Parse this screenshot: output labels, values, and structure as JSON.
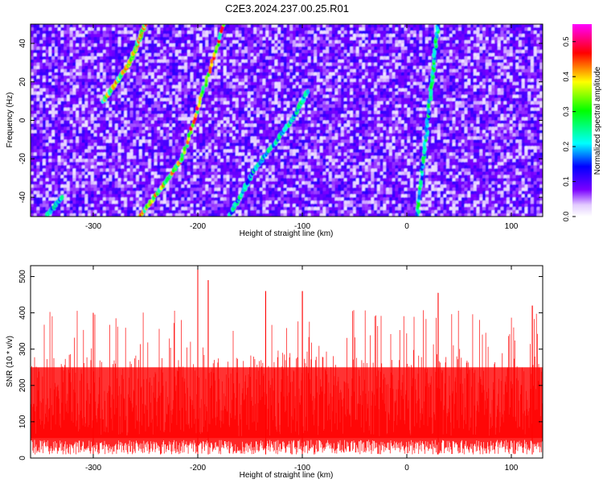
{
  "title": "C2E3.2024.237.00.25.R01",
  "chart_data": [
    {
      "type": "heatmap",
      "title": "C2E3.2024.237.00.25.R01",
      "xlabel": "Height of straight line (km)",
      "ylabel": "Frequency (Hz)",
      "xlim": [
        -360,
        130
      ],
      "ylim": [
        -50,
        50
      ],
      "x_ticks": [
        -300,
        -200,
        -100,
        0,
        100
      ],
      "y_ticks": [
        -40,
        -20,
        0,
        20,
        40
      ],
      "colorbar": {
        "label": "Normalized spectral amplitude",
        "range": [
          0.0,
          0.55
        ],
        "ticks": [
          0.0,
          0.1,
          0.2,
          0.3,
          0.4,
          0.5
        ],
        "colormap": [
          "#ffffff",
          "#7a00ff",
          "#0000ff",
          "#00ffff",
          "#00ff00",
          "#ffff00",
          "#ff0000",
          "#ff00ff"
        ]
      },
      "background_level": 0.05,
      "ridges": [
        {
          "x": [
            -345,
            -330
          ],
          "y": [
            -50,
            -40
          ],
          "level": 0.22
        },
        {
          "x": [
            -255,
            -215,
            -175
          ],
          "y": [
            -50,
            -20,
            50
          ],
          "level": 0.38
        },
        {
          "x": [
            -290,
            -265,
            -250
          ],
          "y": [
            10,
            30,
            50
          ],
          "level": 0.35
        },
        {
          "x": [
            -170,
            -145,
            -110,
            -95
          ],
          "y": [
            -50,
            -25,
            0,
            15
          ],
          "level": 0.22
        },
        {
          "x": [
            10,
            20,
            30
          ],
          "y": [
            -50,
            0,
            50
          ],
          "level": 0.24
        }
      ]
    },
    {
      "type": "line",
      "xlabel": "Height of straight line (km)",
      "ylabel": "SNR (10 * v/v)",
      "xlim": [
        -360,
        130
      ],
      "ylim": [
        0,
        530
      ],
      "x_ticks": [
        -300,
        -200,
        -100,
        0,
        100
      ],
      "y_ticks": [
        0,
        100,
        200,
        300,
        400,
        500
      ],
      "color": "#ff0000",
      "series_summary": {
        "baseline_min": 10,
        "typical_band": [
          60,
          280
        ],
        "peaks": [
          {
            "x": -200,
            "y": 530
          },
          {
            "x": -190,
            "y": 490
          },
          {
            "x": -135,
            "y": 460
          },
          {
            "x": -100,
            "y": 460
          },
          {
            "x": 30,
            "y": 455
          },
          {
            "x": -300,
            "y": 400
          },
          {
            "x": 120,
            "y": 420
          }
        ]
      }
    }
  ]
}
